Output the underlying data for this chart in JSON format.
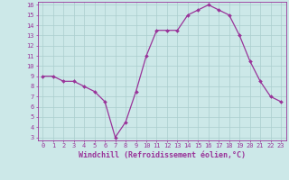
{
  "x": [
    0,
    1,
    2,
    3,
    4,
    5,
    6,
    7,
    8,
    9,
    10,
    11,
    12,
    13,
    14,
    15,
    16,
    17,
    18,
    19,
    20,
    21,
    22,
    23
  ],
  "y": [
    9,
    9,
    8.5,
    8.5,
    8,
    7.5,
    6.5,
    3,
    4.5,
    7.5,
    11,
    13.5,
    13.5,
    13.5,
    15,
    15.5,
    16,
    15.5,
    15,
    13,
    10.5,
    8.5,
    7,
    6.5
  ],
  "line_color": "#993399",
  "marker_color": "#993399",
  "bg_color": "#cce8e8",
  "grid_color": "#aacece",
  "axis_color": "#993399",
  "xlabel": "Windchill (Refroidissement éolien,°C)",
  "ylim": [
    3,
    16
  ],
  "xlim": [
    -0.5,
    23.5
  ],
  "yticks": [
    3,
    4,
    5,
    6,
    7,
    8,
    9,
    10,
    11,
    12,
    13,
    14,
    15,
    16
  ],
  "xticks": [
    0,
    1,
    2,
    3,
    4,
    5,
    6,
    7,
    8,
    9,
    10,
    11,
    12,
    13,
    14,
    15,
    16,
    17,
    18,
    19,
    20,
    21,
    22,
    23
  ],
  "tick_fontsize": 5.0,
  "xlabel_fontsize": 6.0,
  "marker_size": 2.0,
  "line_width": 0.9
}
